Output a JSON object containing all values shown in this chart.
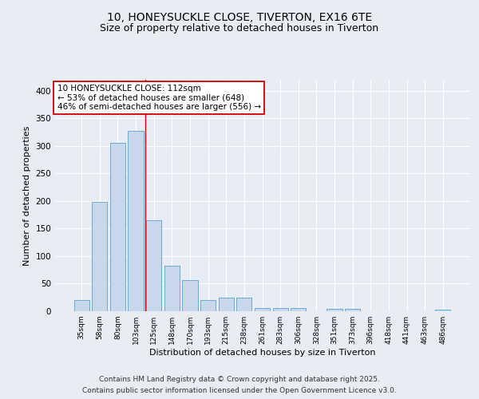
{
  "title1": "10, HONEYSUCKLE CLOSE, TIVERTON, EX16 6TE",
  "title2": "Size of property relative to detached houses in Tiverton",
  "xlabel": "Distribution of detached houses by size in Tiverton",
  "ylabel": "Number of detached properties",
  "bar_labels": [
    "35sqm",
    "58sqm",
    "80sqm",
    "103sqm",
    "125sqm",
    "148sqm",
    "170sqm",
    "193sqm",
    "215sqm",
    "238sqm",
    "261sqm",
    "283sqm",
    "306sqm",
    "328sqm",
    "351sqm",
    "373sqm",
    "396sqm",
    "418sqm",
    "441sqm",
    "463sqm",
    "486sqm"
  ],
  "bar_values": [
    20,
    198,
    305,
    328,
    165,
    83,
    56,
    20,
    25,
    25,
    6,
    6,
    6,
    0,
    4,
    4,
    0,
    0,
    0,
    0,
    3
  ],
  "bar_color": "#c8d8ea",
  "bar_edge_color": "#6aaad4",
  "vline_x": 3.53,
  "vline_color": "#cc0000",
  "annotation_text": "10 HONEYSUCKLE CLOSE: 112sqm\n← 53% of detached houses are smaller (648)\n46% of semi-detached houses are larger (556) →",
  "annotation_box_color": "#ffffff",
  "annotation_box_edge": "#cc0000",
  "ylim": [
    0,
    420
  ],
  "yticks": [
    0,
    50,
    100,
    150,
    200,
    250,
    300,
    350,
    400
  ],
  "bg_color": "#e8edf5",
  "plot_bg": "#e8edf5",
  "grid_color": "#ffffff",
  "footer1": "Contains HM Land Registry data © Crown copyright and database right 2025.",
  "footer2": "Contains public sector information licensed under the Open Government Licence v3.0.",
  "title1_fontsize": 10,
  "title2_fontsize": 9,
  "annotation_fontsize": 7.5,
  "xlabel_fontsize": 8,
  "ylabel_fontsize": 8,
  "footer_fontsize": 6.5
}
